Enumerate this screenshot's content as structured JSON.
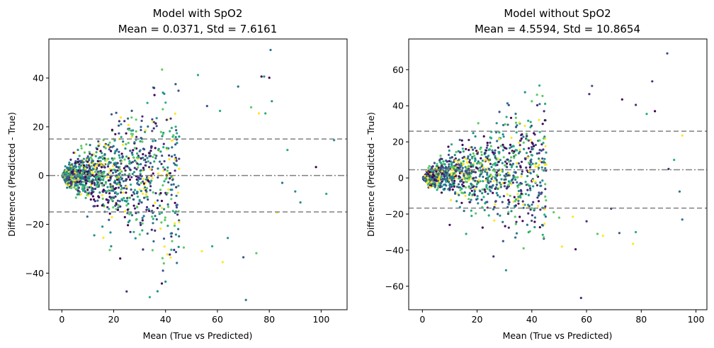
{
  "chart_data": [
    {
      "type": "scatter",
      "title_line1": "Model with SpO2",
      "title_line2": "Mean = 0.0371, Std = 7.6161",
      "xlabel": "Mean (True vs Predicted)",
      "ylabel": "Difference (Predicted - True)",
      "xlim": [
        -5,
        110
      ],
      "ylim": [
        -55,
        56
      ],
      "xticks": [
        0,
        20,
        40,
        60,
        80,
        100
      ],
      "yticks": [
        -40,
        -20,
        0,
        20,
        40
      ],
      "mean_diff": 0.0371,
      "upper_loa": 15.0,
      "lower_loa": -14.9,
      "grid": false,
      "legend": "none",
      "cloud": {
        "n": 1400,
        "spread": 0.55,
        "xmax": 45
      },
      "outliers": [
        [
          80.5,
          51.5
        ],
        [
          52.5,
          41.2
        ],
        [
          77,
          40.6
        ],
        [
          78,
          40.6
        ],
        [
          80,
          40.1
        ],
        [
          39,
          34
        ],
        [
          39.5,
          33.5
        ],
        [
          68,
          36.5
        ],
        [
          56,
          28.5
        ],
        [
          81,
          30.5
        ],
        [
          33,
          29.8
        ],
        [
          61,
          26.5
        ],
        [
          73,
          28
        ],
        [
          76,
          25.5
        ],
        [
          78.5,
          25.5
        ],
        [
          87,
          10.5
        ],
        [
          90,
          -6.5
        ],
        [
          92,
          -11
        ],
        [
          102,
          -7.5
        ],
        [
          105,
          14.5
        ],
        [
          70,
          -33.5
        ],
        [
          71,
          -51
        ],
        [
          75,
          -31.8
        ],
        [
          62,
          -35.5
        ],
        [
          47,
          -29.5
        ],
        [
          39,
          -39
        ],
        [
          40,
          -43.5
        ],
        [
          25,
          -47.5
        ],
        [
          54,
          -31
        ],
        [
          58,
          -29
        ],
        [
          18.5,
          -30.5
        ],
        [
          19,
          -29
        ],
        [
          16,
          -25.5
        ],
        [
          12.5,
          -24.5
        ],
        [
          22.5,
          -34
        ],
        [
          64,
          -25.6
        ],
        [
          35,
          -30.6
        ],
        [
          83,
          -15.2
        ],
        [
          85,
          -3
        ],
        [
          98,
          3.5
        ]
      ],
      "colors": [
        "#440154",
        "#3b528b",
        "#21908d",
        "#5dc963",
        "#fde725",
        "#2c728e",
        "#27ad81",
        "#472d7b"
      ],
      "line_color": "#808080"
    },
    {
      "type": "scatter",
      "title_line1": "Model without SpO2",
      "title_line2": "Mean = 4.5594, Std = 10.8654",
      "xlabel": "Mean (True vs Predicted)",
      "ylabel": "Difference (Predicted - True)",
      "xlim": [
        -5,
        104
      ],
      "ylim": [
        -73,
        77
      ],
      "xticks": [
        0,
        20,
        40,
        60,
        80,
        100
      ],
      "yticks": [
        -60,
        -40,
        -20,
        0,
        20,
        40,
        60
      ],
      "mean_diff": 4.5594,
      "upper_loa": 25.9,
      "lower_loa": -16.7,
      "grid": false,
      "legend": "none",
      "cloud": {
        "n": 1400,
        "spread": 0.6,
        "xmax": 45
      },
      "outliers": [
        [
          89.5,
          69
        ],
        [
          62,
          51
        ],
        [
          84,
          53.5
        ],
        [
          61,
          46.5
        ],
        [
          78,
          40.5
        ],
        [
          37.5,
          47.5
        ],
        [
          40,
          42.5
        ],
        [
          73,
          43.5
        ],
        [
          82,
          35.5
        ],
        [
          85,
          37
        ],
        [
          95,
          23.5
        ],
        [
          92,
          10
        ],
        [
          90,
          5
        ],
        [
          94,
          -7.5
        ],
        [
          95,
          -23
        ],
        [
          78,
          -30
        ],
        [
          77,
          -36.5
        ],
        [
          58,
          -66.5
        ],
        [
          51,
          -38
        ],
        [
          56,
          -39.5
        ],
        [
          26,
          -43.5
        ],
        [
          37,
          -39
        ],
        [
          64,
          -31
        ],
        [
          66,
          -32
        ],
        [
          72,
          -30.5
        ],
        [
          34,
          -33
        ],
        [
          16,
          -31
        ],
        [
          22,
          -27.5
        ],
        [
          44,
          -31.5
        ],
        [
          55,
          -21.5
        ],
        [
          10,
          -26
        ],
        [
          60,
          -24
        ],
        [
          48,
          -19
        ],
        [
          50,
          -22
        ],
        [
          69,
          -17
        ]
      ],
      "colors": [
        "#440154",
        "#3b528b",
        "#21908d",
        "#5dc963",
        "#fde725",
        "#2c728e",
        "#27ad81",
        "#472d7b"
      ],
      "line_color": "#808080"
    }
  ]
}
